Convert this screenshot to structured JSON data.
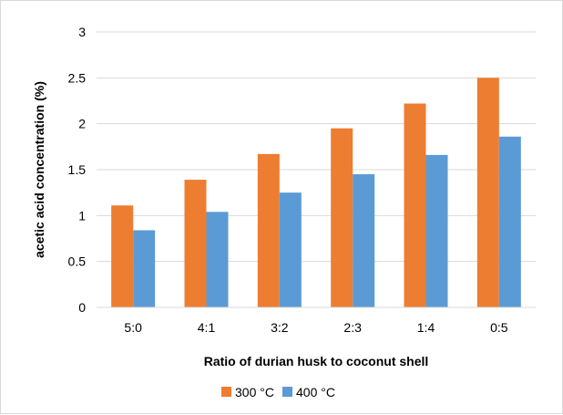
{
  "chart_data": {
    "type": "bar",
    "categories": [
      "5:0",
      "4:1",
      "3:2",
      "2:3",
      "1:4",
      "0:5"
    ],
    "series": [
      {
        "name": "300 °C",
        "color": "#ED7D31",
        "values": [
          1.11,
          1.39,
          1.67,
          1.95,
          2.22,
          2.5
        ]
      },
      {
        "name": "400 °C",
        "color": "#5B9BD5",
        "values": [
          0.84,
          1.04,
          1.25,
          1.45,
          1.66,
          1.86
        ]
      }
    ],
    "xlabel": "Ratio of durian husk to coconut shell",
    "ylabel": "acetic acid concentration (%)",
    "ylim": [
      0,
      3
    ],
    "yticks": [
      "0",
      "0.5",
      "1",
      "1.5",
      "2",
      "2.5",
      "3"
    ],
    "grid": true,
    "legend_position": "bottom"
  }
}
